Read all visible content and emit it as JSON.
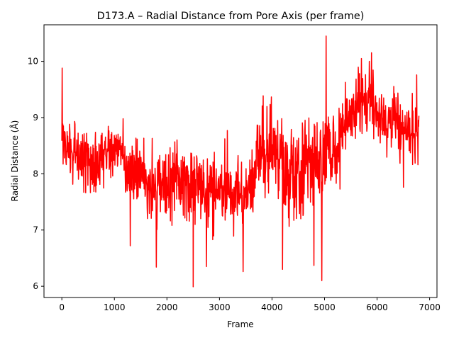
{
  "chart_data": {
    "type": "line",
    "title": "D173.A – Radial Distance from Pore Axis (per frame)",
    "xlabel": "Frame",
    "ylabel": "Radial Distance (Å)",
    "xlim": [
      -340,
      7140
    ],
    "ylim": [
      5.8,
      10.65
    ],
    "xticks": [
      0,
      1000,
      2000,
      3000,
      4000,
      5000,
      6000,
      7000
    ],
    "yticks": [
      6,
      7,
      8,
      9,
      10
    ],
    "grid": false,
    "legend": "none",
    "line_color": "#ff0000",
    "frame_count": 6800,
    "series": [
      {
        "values_by_segment": [
          {
            "x": [
              0,
              100
            ],
            "mean": 8.6,
            "amp": 0.55
          },
          {
            "x": [
              100,
              400
            ],
            "mean": 8.3,
            "amp": 0.5
          },
          {
            "x": [
              400,
              800
            ],
            "mean": 8.2,
            "amp": 0.5
          },
          {
            "x": [
              800,
              1200
            ],
            "mean": 8.4,
            "amp": 0.45
          },
          {
            "x": [
              1200,
              1600
            ],
            "mean": 8.0,
            "amp": 0.65
          },
          {
            "x": [
              1600,
              2000
            ],
            "mean": 7.8,
            "amp": 0.6
          },
          {
            "x": [
              2000,
              2500
            ],
            "mean": 7.9,
            "amp": 0.6
          },
          {
            "x": [
              2500,
              3000
            ],
            "mean": 7.7,
            "amp": 0.65
          },
          {
            "x": [
              3000,
              3500
            ],
            "mean": 7.6,
            "amp": 0.6
          },
          {
            "x": [
              3500,
              3700
            ],
            "mean": 7.8,
            "amp": 0.65
          },
          {
            "x": [
              3700,
              4200
            ],
            "mean": 8.4,
            "amp": 0.7
          },
          {
            "x": [
              4200,
              4600
            ],
            "mean": 8.0,
            "amp": 0.7
          },
          {
            "x": [
              4600,
              5000
            ],
            "mean": 8.3,
            "amp": 0.75
          },
          {
            "x": [
              5000,
              5300
            ],
            "mean": 8.4,
            "amp": 0.7
          },
          {
            "x": [
              5300,
              5600
            ],
            "mean": 9.0,
            "amp": 0.55
          },
          {
            "x": [
              5600,
              6000
            ],
            "mean": 9.3,
            "amp": 0.5
          },
          {
            "x": [
              6000,
              6400
            ],
            "mean": 9.0,
            "amp": 0.45
          },
          {
            "x": [
              6400,
              6800
            ],
            "mean": 8.8,
            "amp": 0.5
          }
        ],
        "extremes": [
          {
            "x": 5,
            "y": 9.88
          },
          {
            "x": 1300,
            "y": 6.72
          },
          {
            "x": 1800,
            "y": 6.34
          },
          {
            "x": 2500,
            "y": 5.99
          },
          {
            "x": 2750,
            "y": 6.35
          },
          {
            "x": 3450,
            "y": 6.26
          },
          {
            "x": 4200,
            "y": 6.3
          },
          {
            "x": 4800,
            "y": 6.37
          },
          {
            "x": 4950,
            "y": 6.1
          },
          {
            "x": 5030,
            "y": 10.45
          },
          {
            "x": 5700,
            "y": 10.05
          },
          {
            "x": 5850,
            "y": 10.0
          },
          {
            "x": 6500,
            "y": 7.76
          }
        ]
      }
    ]
  }
}
